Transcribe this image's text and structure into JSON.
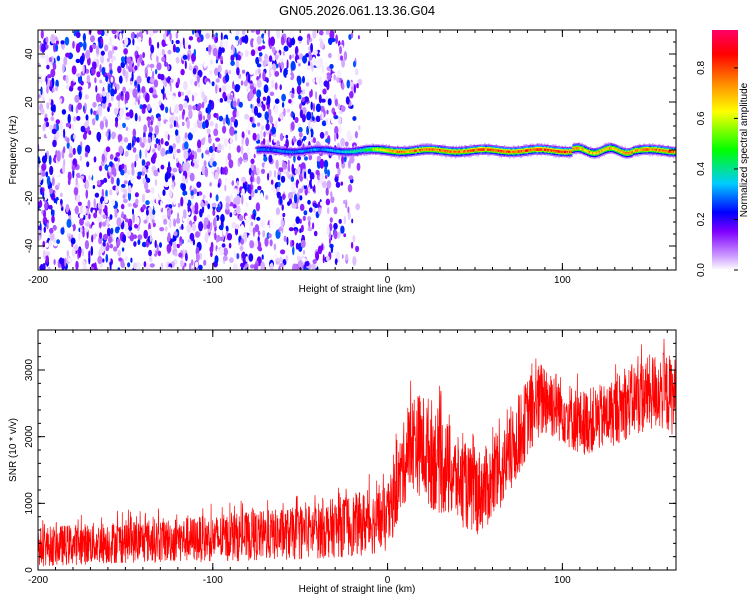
{
  "title": "GN05.2026.061.13.36.G04",
  "chart_data": [
    {
      "type": "heatmap",
      "title": "GN05.2026.061.13.36.G04",
      "xlabel": "Height of straight line (km)",
      "ylabel": "Frequency (Hz)",
      "xlim": [
        -200,
        165
      ],
      "ylim": [
        -50,
        50
      ],
      "x_ticks": [
        -200,
        -100,
        0,
        100
      ],
      "x_tick_labels": [
        "-200",
        "-100",
        "0",
        "100"
      ],
      "y_ticks": [
        -40,
        -20,
        0,
        20,
        40
      ],
      "y_tick_labels": [
        "-40",
        "-20",
        "0",
        "20",
        "40"
      ],
      "colorbar": {
        "label": "Normalized spectral amplitude",
        "range": [
          0,
          0.95
        ],
        "ticks": [
          0.0,
          0.2,
          0.4,
          0.6,
          0.8
        ],
        "tick_labels": [
          "0.0",
          "0.2",
          "0.4",
          "0.6",
          "0.8"
        ],
        "colors": [
          "#ffffff",
          "#cc99ff",
          "#7f00ff",
          "#0000ff",
          "#00ccff",
          "#00ff00",
          "#ffff00",
          "#ff8800",
          "#ff0000",
          "#ff0066"
        ]
      },
      "noise_region_x": [
        -200,
        -15
      ],
      "signal_band": {
        "frequency_hz": 0,
        "x_start": -75,
        "x_end": 165,
        "description_points": [
          {
            "x": -75,
            "amp": 0.3
          },
          {
            "x": -30,
            "amp": 0.35
          },
          {
            "x": -15,
            "amp": 0.45
          },
          {
            "x": 0,
            "amp": 0.8
          },
          {
            "x": 50,
            "amp": 0.85
          },
          {
            "x": 100,
            "amp": 0.9
          },
          {
            "x": 110,
            "amp": 0.75
          },
          {
            "x": 165,
            "amp": 0.85
          }
        ]
      }
    },
    {
      "type": "line",
      "xlabel": "Height of straight line (km)",
      "ylabel": "SNR (10 * v/v)",
      "xlim": [
        -200,
        165
      ],
      "ylim": [
        0,
        3600
      ],
      "x_ticks": [
        -200,
        -100,
        0,
        100
      ],
      "x_tick_labels": [
        "-200",
        "-100",
        "0",
        "100"
      ],
      "y_ticks": [
        0,
        1000,
        2000,
        3000
      ],
      "y_tick_labels": [
        "0",
        "1000",
        "2000",
        "3000"
      ],
      "color": "#ff0000",
      "envelope": [
        {
          "x": -200,
          "low": 50,
          "high": 650
        },
        {
          "x": -150,
          "low": 100,
          "high": 750
        },
        {
          "x": -100,
          "low": 120,
          "high": 820
        },
        {
          "x": -50,
          "low": 150,
          "high": 950
        },
        {
          "x": -20,
          "low": 200,
          "high": 1150
        },
        {
          "x": 0,
          "low": 250,
          "high": 1250
        },
        {
          "x": 10,
          "low": 1000,
          "high": 2300
        },
        {
          "x": 15,
          "low": 1200,
          "high": 2700
        },
        {
          "x": 25,
          "low": 900,
          "high": 2600
        },
        {
          "x": 40,
          "low": 700,
          "high": 2000
        },
        {
          "x": 50,
          "low": 500,
          "high": 1800
        },
        {
          "x": 60,
          "low": 700,
          "high": 1900
        },
        {
          "x": 70,
          "low": 1100,
          "high": 2300
        },
        {
          "x": 80,
          "low": 1700,
          "high": 2900
        },
        {
          "x": 90,
          "low": 2000,
          "high": 3200
        },
        {
          "x": 100,
          "low": 1900,
          "high": 2900
        },
        {
          "x": 110,
          "low": 1700,
          "high": 2700
        },
        {
          "x": 125,
          "low": 1800,
          "high": 2800
        },
        {
          "x": 140,
          "low": 2000,
          "high": 3100
        },
        {
          "x": 155,
          "low": 2100,
          "high": 3300
        },
        {
          "x": 165,
          "low": 2000,
          "high": 3200
        }
      ]
    }
  ]
}
